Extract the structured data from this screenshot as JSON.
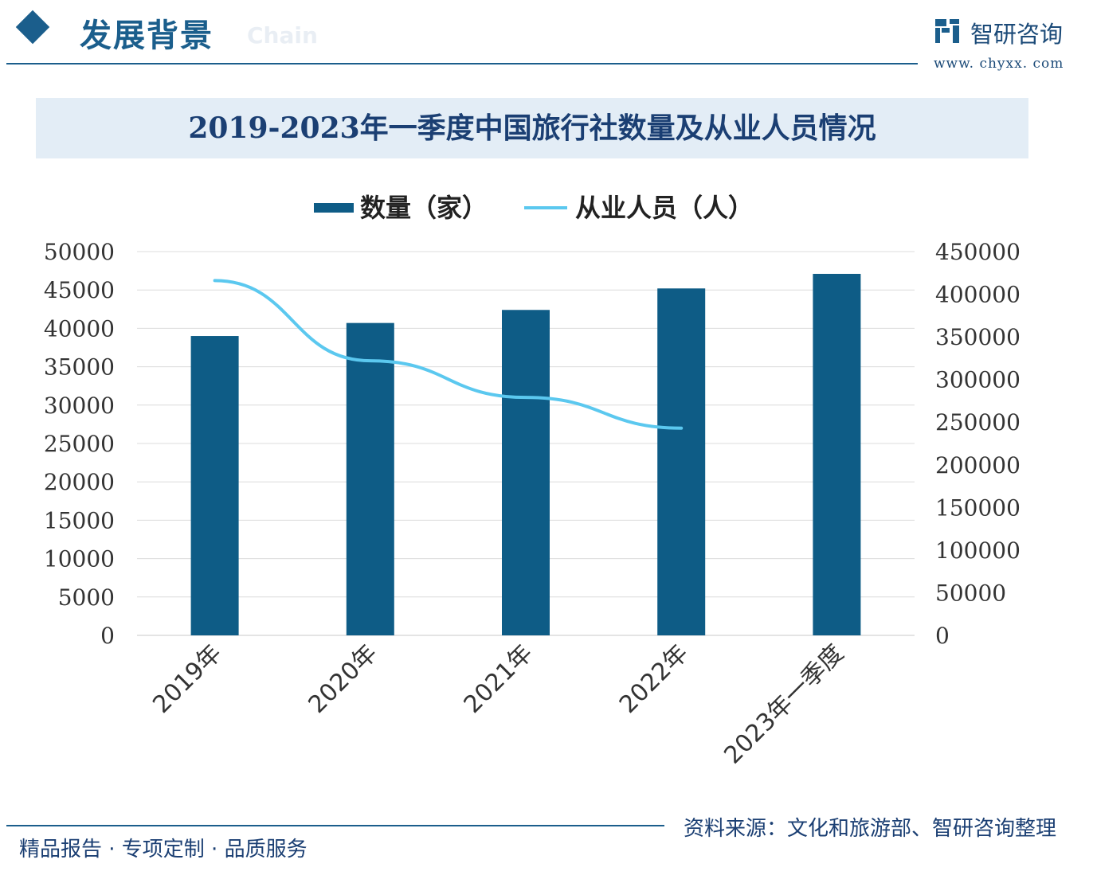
{
  "header": {
    "section_title": "发展背景",
    "section_subtitle_ghost": "Chain",
    "logo_name": "智研咨询",
    "logo_url": "www. chyxx. com"
  },
  "colors": {
    "brand": "#1b5e8c",
    "bar": "#0e5c86",
    "line": "#5bc8ef",
    "title_band": "#e3edf6",
    "title_text": "#1b3f73"
  },
  "chart_data": {
    "type": "bar",
    "title": "2019-2023年一季度中国旅行社数量及从业人员情况",
    "categories": [
      "2019年",
      "2020年",
      "2021年",
      "2022年",
      "2023年一季度"
    ],
    "series": [
      {
        "name": "数量（家）",
        "type": "bar",
        "axis": "left",
        "values": [
          39000,
          40700,
          42400,
          45200,
          47100
        ]
      },
      {
        "name": "从业人员（人）",
        "type": "line",
        "axis": "right",
        "values": [
          416000,
          322000,
          279000,
          243000,
          null
        ]
      }
    ],
    "y_left": {
      "min": 0,
      "max": 50000,
      "ticks": [
        "0",
        "5000",
        "10000",
        "15000",
        "20000",
        "25000",
        "30000",
        "35000",
        "40000",
        "45000",
        "50000"
      ]
    },
    "y_right": {
      "min": 0,
      "max": 450000,
      "ticks": [
        "0",
        "50000",
        "100000",
        "150000",
        "200000",
        "250000",
        "300000",
        "350000",
        "400000",
        "450000"
      ]
    },
    "legend_position": "top",
    "grid": true
  },
  "footer": {
    "tagline": "精品报告 · 专项定制 · 品质服务",
    "source": "资料来源：文化和旅游部、智研咨询整理"
  }
}
